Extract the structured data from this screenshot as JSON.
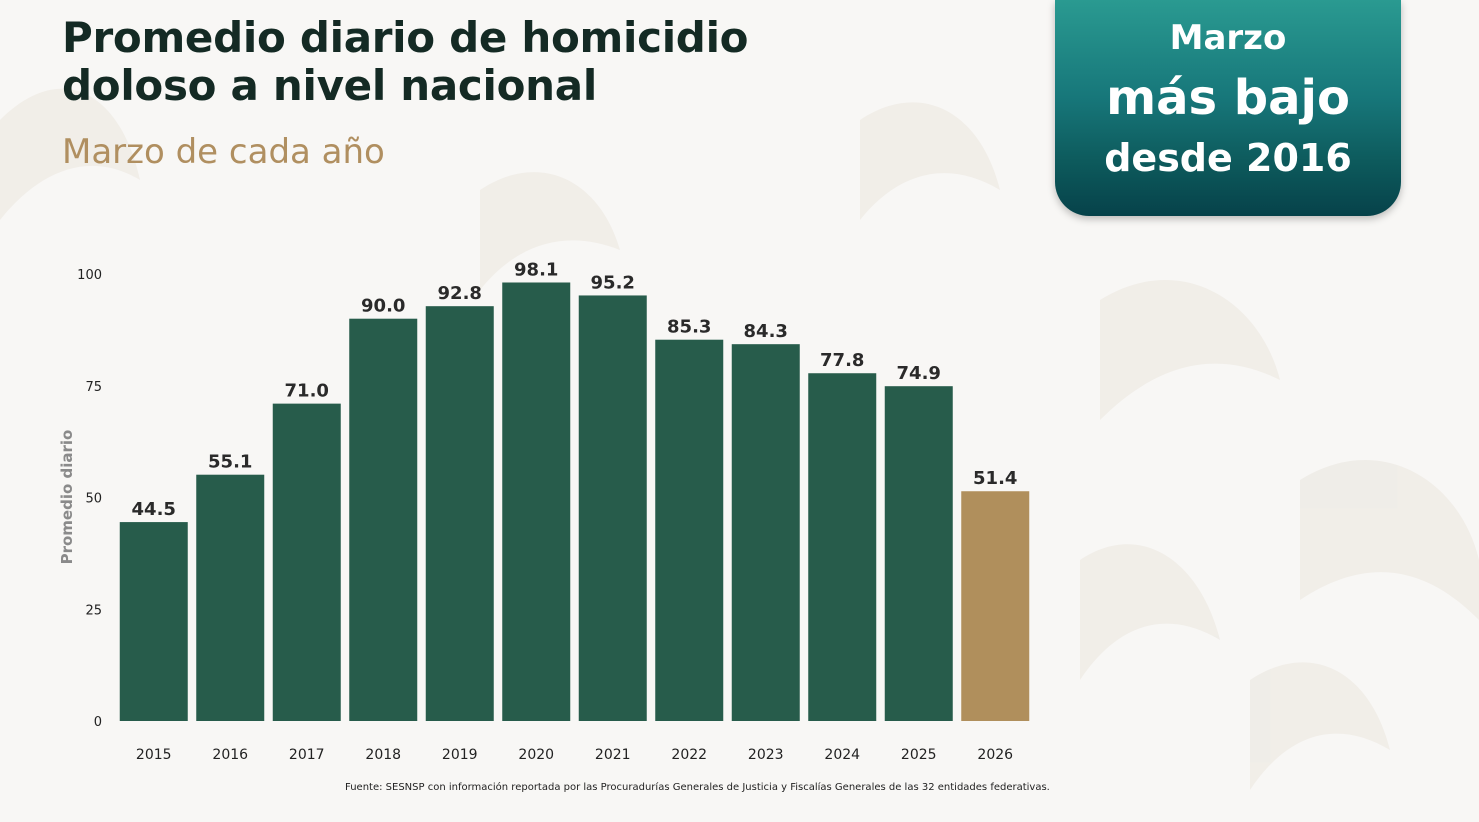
{
  "header": {
    "title_line1": "Promedio diario de homicidio",
    "title_line2": "doloso a nivel nacional",
    "subtitle": "Marzo de cada año"
  },
  "badge": {
    "line1": "Marzo",
    "line2": "más bajo",
    "line3": "desde 2016"
  },
  "colors": {
    "bar": "#275c4b",
    "highlight": "#b08f5c",
    "title": "#142a24",
    "subtitle": "#b08f60"
  },
  "chart_data": {
    "type": "bar",
    "title": "Promedio diario de homicidio doloso a nivel nacional",
    "subtitle": "Marzo de cada año",
    "xlabel": "",
    "ylabel": "Promedio diario",
    "ylim": [
      0,
      100
    ],
    "yticks": [
      0,
      25,
      50,
      75,
      100
    ],
    "grid": false,
    "categories": [
      "2015",
      "2016",
      "2017",
      "2018",
      "2019",
      "2020",
      "2021",
      "2022",
      "2023",
      "2024",
      "2025",
      "2026"
    ],
    "values": [
      44.5,
      55.1,
      71.0,
      90.0,
      92.8,
      98.1,
      95.2,
      85.3,
      84.3,
      77.8,
      74.9,
      51.4
    ],
    "labels": [
      "44.5",
      "55.1",
      "71.0",
      "90.0",
      "92.8",
      "98.1",
      "95.2",
      "85.3",
      "84.3",
      "77.8",
      "74.9",
      "51.4"
    ],
    "highlight_category": "2026"
  },
  "footer": {
    "source": "Fuente: SESNSP con información reportada por las Procuradurías Generales de Justicia y Fiscalías Generales de las 32 entidades federativas."
  }
}
